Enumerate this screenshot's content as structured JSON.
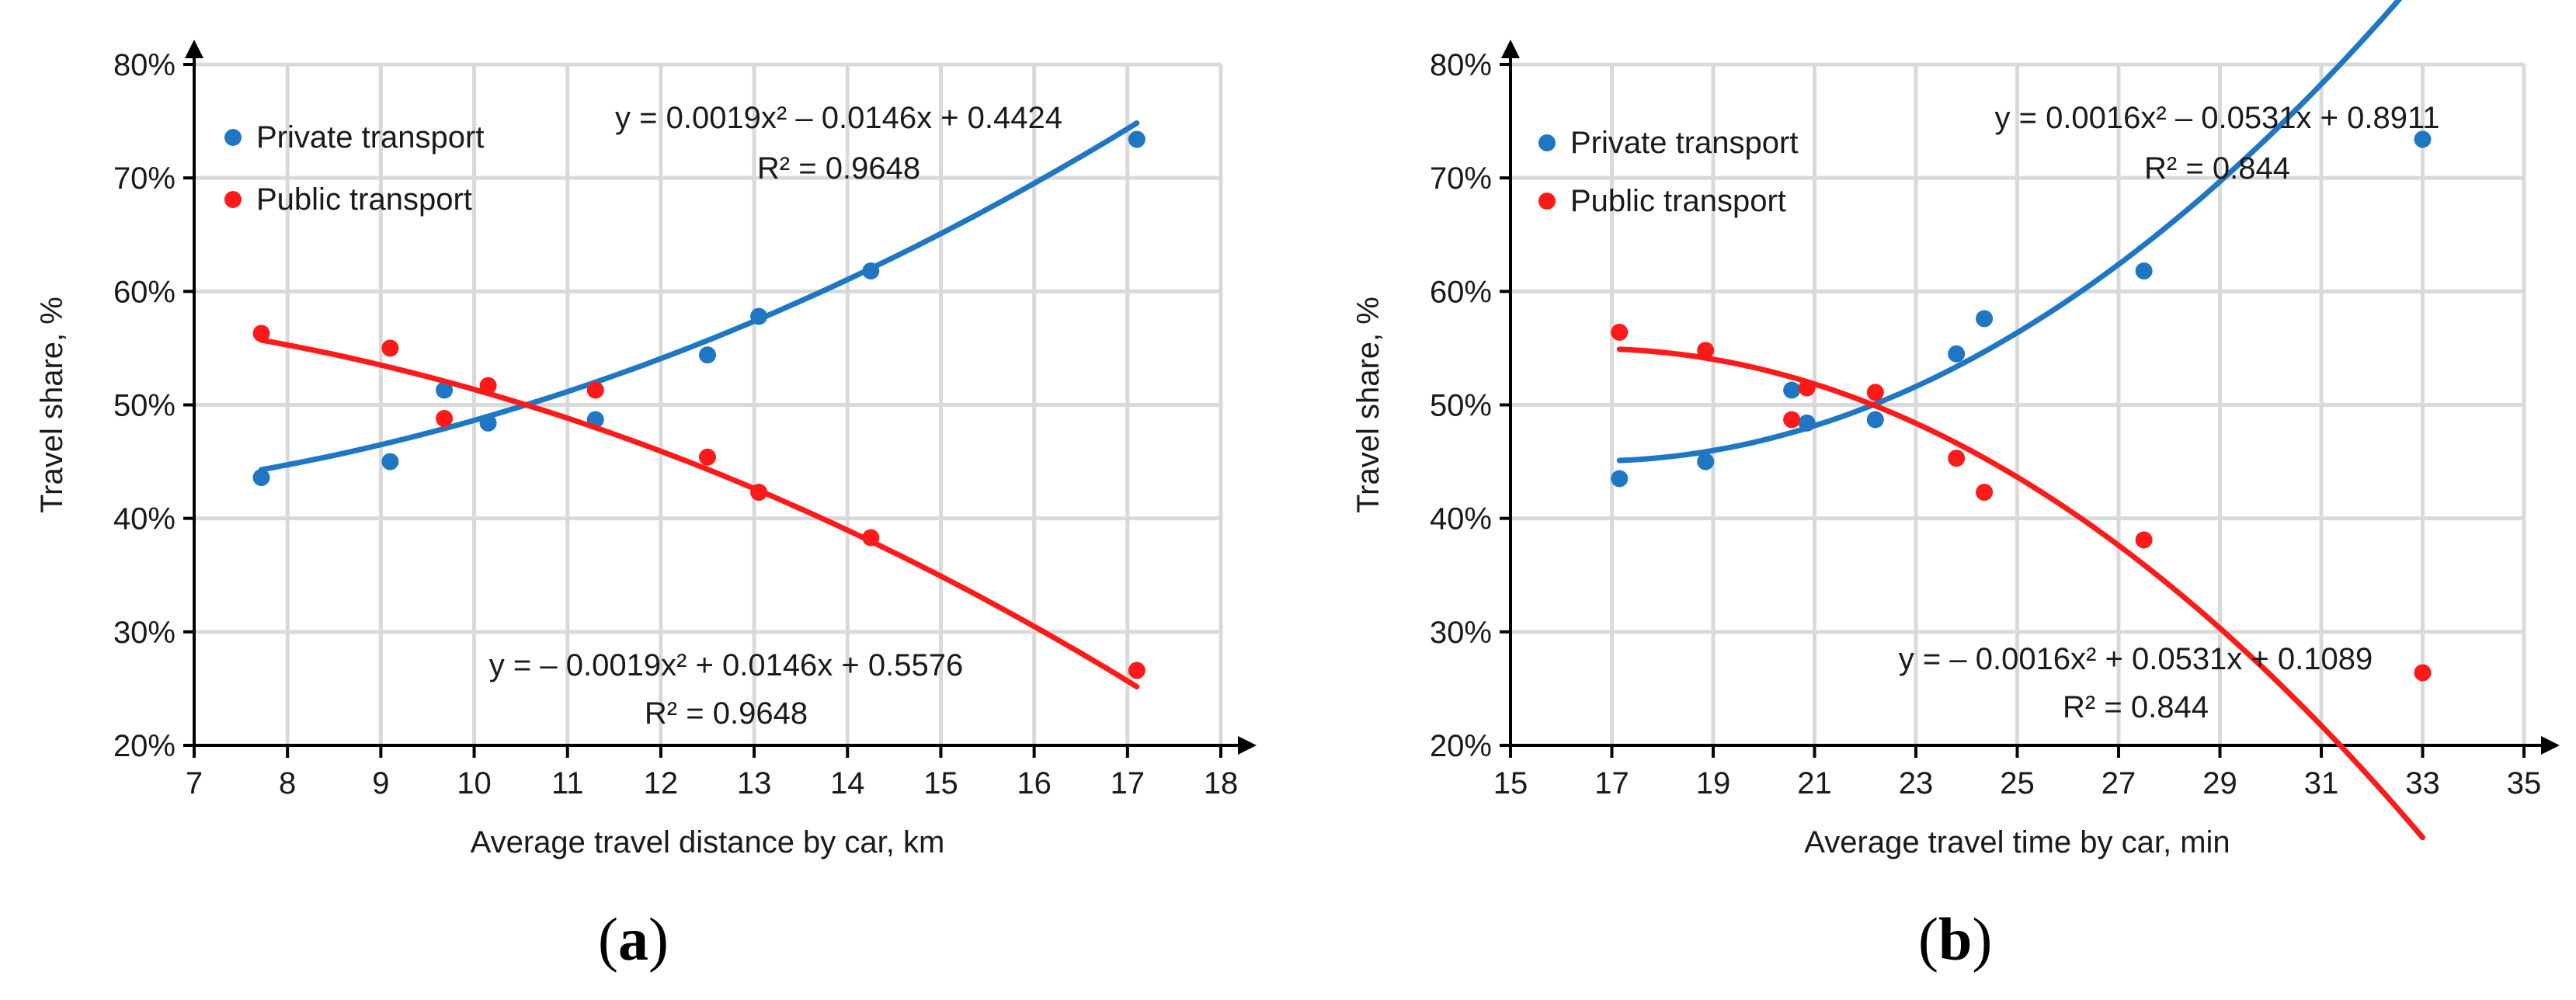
{
  "panels": [
    {
      "label_open": "(",
      "label_letter": "a",
      "label_close": ")"
    },
    {
      "label_open": "(",
      "label_letter": "b",
      "label_close": ")"
    }
  ],
  "colors": {
    "private": "#1f77c4",
    "public": "#ff1a1a",
    "grid": "#d9d9d9",
    "axis": "#000000"
  },
  "chart_data": [
    {
      "type": "scatter",
      "xlabel": "Average travel distance by car, km",
      "ylabel": "Travel share, %",
      "xlim": [
        7,
        18
      ],
      "ylim": [
        0.2,
        0.8
      ],
      "x_ticks": [
        7,
        8,
        9,
        10,
        11,
        12,
        13,
        14,
        15,
        16,
        17,
        18
      ],
      "y_ticks": [
        0.2,
        0.3,
        0.4,
        0.5,
        0.6,
        0.7,
        0.8
      ],
      "y_tick_labels": [
        "20%",
        "30%",
        "40%",
        "50%",
        "60%",
        "70%",
        "80%"
      ],
      "grid": true,
      "legend": "top-left",
      "series": [
        {
          "name": "Private transport",
          "color": "#1f77c4",
          "x": [
            7.72,
            9.1,
            9.68,
            10.15,
            11.3,
            12.5,
            13.05,
            14.25,
            17.1
          ],
          "y": [
            0.436,
            0.45,
            0.513,
            0.484,
            0.487,
            0.544,
            0.578,
            0.618,
            0.734
          ],
          "trend": {
            "a": 0.0019,
            "b": -0.0146,
            "c": 0.4424
          },
          "equation": "y = 0.0019x² – 0.0146x + 0.4424",
          "r2": "R² = 0.9648"
        },
        {
          "name": "Public transport",
          "color": "#ff1a1a",
          "x": [
            7.72,
            9.1,
            9.68,
            10.15,
            11.3,
            12.5,
            13.05,
            14.25,
            17.1
          ],
          "y": [
            0.563,
            0.55,
            0.488,
            0.517,
            0.513,
            0.454,
            0.423,
            0.383,
            0.266
          ],
          "trend": {
            "a": -0.0019,
            "b": 0.0146,
            "c": 0.5576
          },
          "equation": "y = – 0.0019x² + 0.0146x + 0.5576",
          "r2": "R² = 0.9648"
        }
      ]
    },
    {
      "type": "scatter",
      "xlabel": "Average travel time by car, min",
      "ylabel": "Travel share, %",
      "xlim": [
        15,
        35
      ],
      "ylim": [
        0.2,
        0.8
      ],
      "x_ticks": [
        15,
        17,
        19,
        21,
        23,
        25,
        27,
        29,
        31,
        33,
        35
      ],
      "y_ticks": [
        0.2,
        0.3,
        0.4,
        0.5,
        0.6,
        0.7,
        0.8
      ],
      "y_tick_labels": [
        "20%",
        "30%",
        "40%",
        "50%",
        "60%",
        "70%",
        "80%"
      ],
      "grid": true,
      "legend": "top-left",
      "series": [
        {
          "name": "Private transport",
          "color": "#1f77c4",
          "x": [
            17.15,
            18.85,
            20.55,
            20.85,
            22.2,
            23.8,
            24.35,
            27.5,
            33.0
          ],
          "y": [
            0.435,
            0.45,
            0.513,
            0.484,
            0.487,
            0.545,
            0.576,
            0.618,
            0.734
          ],
          "trend": {
            "a": 0.0016,
            "b": -0.0531,
            "c": 0.8911
          },
          "equation": "y = 0.0016x² – 0.0531x + 0.8911",
          "r2": "R² = 0.844"
        },
        {
          "name": "Public transport",
          "color": "#ff1a1a",
          "x": [
            17.15,
            18.85,
            20.55,
            20.85,
            22.2,
            23.8,
            24.35,
            27.5,
            33.0
          ],
          "y": [
            0.564,
            0.548,
            0.487,
            0.515,
            0.511,
            0.453,
            0.423,
            0.381,
            0.264
          ],
          "trend": {
            "a": -0.0016,
            "b": 0.0531,
            "c": 0.1089
          },
          "equation": "y = – 0.0016x² + 0.0531x + 0.1089",
          "r2": "R² = 0.844"
        }
      ]
    }
  ]
}
